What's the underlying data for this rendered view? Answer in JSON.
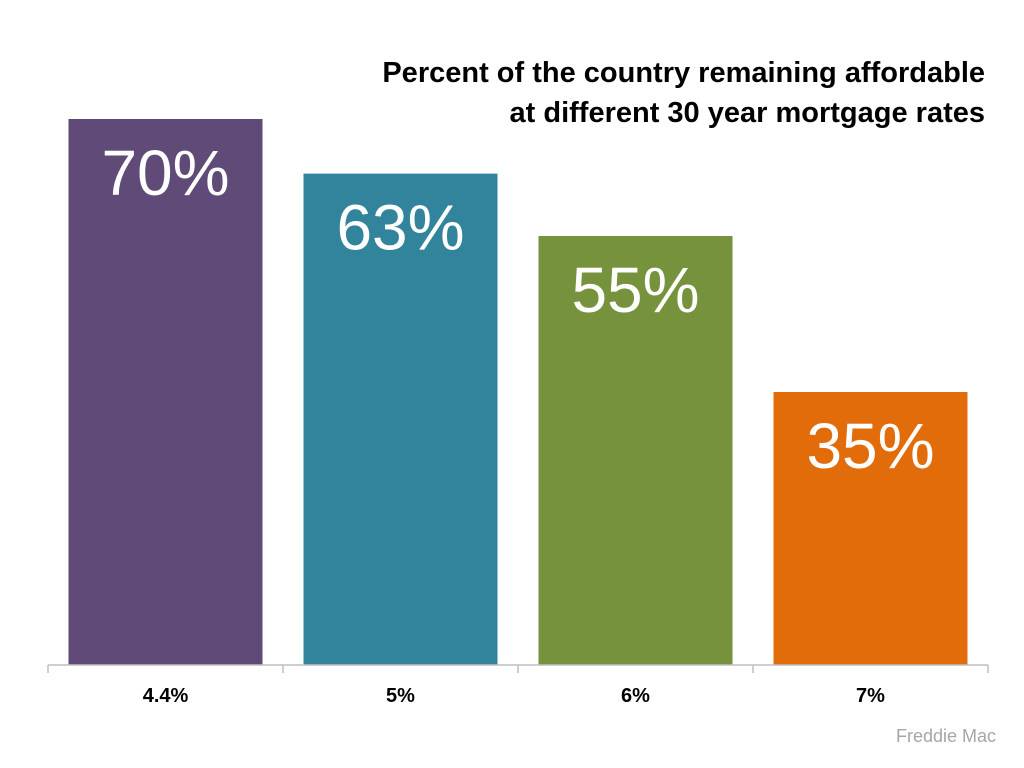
{
  "chart_data": {
    "type": "bar",
    "title": "Percent of the country remaining affordable at different 30 year mortgage rates",
    "title_lines": [
      "Percent of the country remaining affordable",
      "at different 30 year mortgage rates"
    ],
    "categories": [
      "4.4%",
      "5%",
      "6%",
      "7%"
    ],
    "values": [
      70,
      63,
      55,
      35
    ],
    "data_labels": [
      "70%",
      "63%",
      "55%",
      "35%"
    ],
    "colors": [
      "#5f4a78",
      "#31849b",
      "#76923c",
      "#e36c0a"
    ],
    "ylim": [
      0,
      70
    ],
    "xlabel": "",
    "ylabel": "",
    "grid": false,
    "legend": "none"
  },
  "source": "Freddie Mac"
}
